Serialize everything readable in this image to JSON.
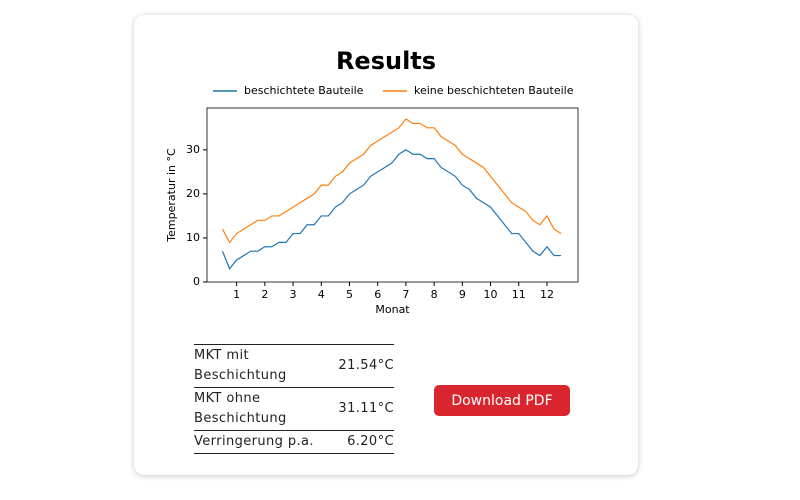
{
  "card": {
    "title": "Results"
  },
  "chart_data": {
    "type": "line",
    "x_label": "Monat",
    "y_label": "Temperatur in °C",
    "x": [
      0.5,
      0.75,
      1,
      1.25,
      1.5,
      1.75,
      2,
      2.25,
      2.5,
      2.75,
      3,
      3.25,
      3.5,
      3.75,
      4,
      4.25,
      4.5,
      4.75,
      5,
      5.25,
      5.5,
      5.75,
      6,
      6.25,
      6.5,
      6.75,
      7,
      7.25,
      7.5,
      7.75,
      8,
      8.25,
      8.5,
      8.75,
      9,
      9.25,
      9.5,
      9.75,
      10,
      10.25,
      10.5,
      10.75,
      11,
      11.25,
      11.5,
      11.75,
      12,
      12.25,
      12.5
    ],
    "series": [
      {
        "name": "beschichtete Bauteile",
        "color": "#1f77b4",
        "values": [
          7,
          3,
          5,
          6,
          7,
          7,
          8,
          8,
          9,
          9,
          11,
          11,
          13,
          13,
          15,
          15,
          17,
          18,
          20,
          21,
          22,
          24,
          25,
          26,
          27,
          29,
          30,
          29,
          29,
          28,
          28,
          26,
          25,
          24,
          22,
          21,
          19,
          18,
          17,
          15,
          13,
          11,
          11,
          9,
          7,
          6,
          8,
          6,
          6
        ]
      },
      {
        "name": "keine beschichteten Bauteile",
        "color": "#ff7f0e",
        "values": [
          12,
          9,
          11,
          12,
          13,
          14,
          14,
          15,
          15,
          16,
          17,
          18,
          19,
          20,
          22,
          22,
          24,
          25,
          27,
          28,
          29,
          31,
          32,
          33,
          34,
          35,
          37,
          36,
          36,
          35,
          35,
          33,
          32,
          31,
          29,
          28,
          27,
          26,
          24,
          22,
          20,
          18,
          17,
          16,
          14,
          13,
          15,
          12,
          11
        ]
      }
    ],
    "xlim": [
      -0.05,
      13.1
    ],
    "xticks": [
      1,
      2,
      3,
      4,
      5,
      6,
      7,
      8,
      9,
      10,
      11,
      12
    ],
    "ylim": [
      0,
      39.5
    ],
    "yticks": [
      0,
      10,
      20,
      30
    ],
    "legend": "top",
    "grid": false
  },
  "table": {
    "rows": [
      [
        "MKT mit Beschichtung",
        "21.54°C"
      ],
      [
        "MKT ohne Beschichtung",
        "31.11°C"
      ],
      [
        "Verringerung p.a.",
        "6.20°C"
      ]
    ]
  },
  "button": {
    "label": "Download PDF"
  }
}
